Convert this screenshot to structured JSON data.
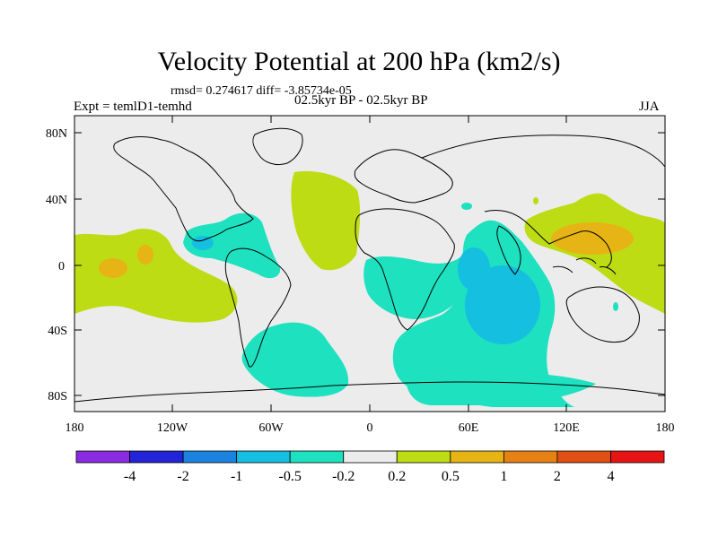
{
  "title": "Velocity Potential at 200 hPa (km2/s)",
  "stats": "rmsd= 0.274617 diff= -3.85734e-05",
  "experiment": "Expt = temlD1-temhd",
  "period": "02.5kyr BP - 02.5kyr BP",
  "season": "JJA",
  "map": {
    "lat_ticks": [
      "80N",
      "40N",
      "0",
      "40S",
      "80S"
    ],
    "lon_ticks": [
      "180",
      "120W",
      "60W",
      "0",
      "60E",
      "120E",
      "180"
    ]
  },
  "colorbar": {
    "colors": [
      "#8a2be2",
      "#2323d8",
      "#1c82e0",
      "#14bfe0",
      "#1ee1c0",
      "#ececec",
      "#bedc14",
      "#e6b414",
      "#e68214",
      "#e05014",
      "#e61414"
    ],
    "labels": [
      "-4",
      "-2",
      "-1",
      "-0.5",
      "-0.2",
      "0.2",
      "0.5",
      "1",
      "2",
      "4"
    ]
  }
}
